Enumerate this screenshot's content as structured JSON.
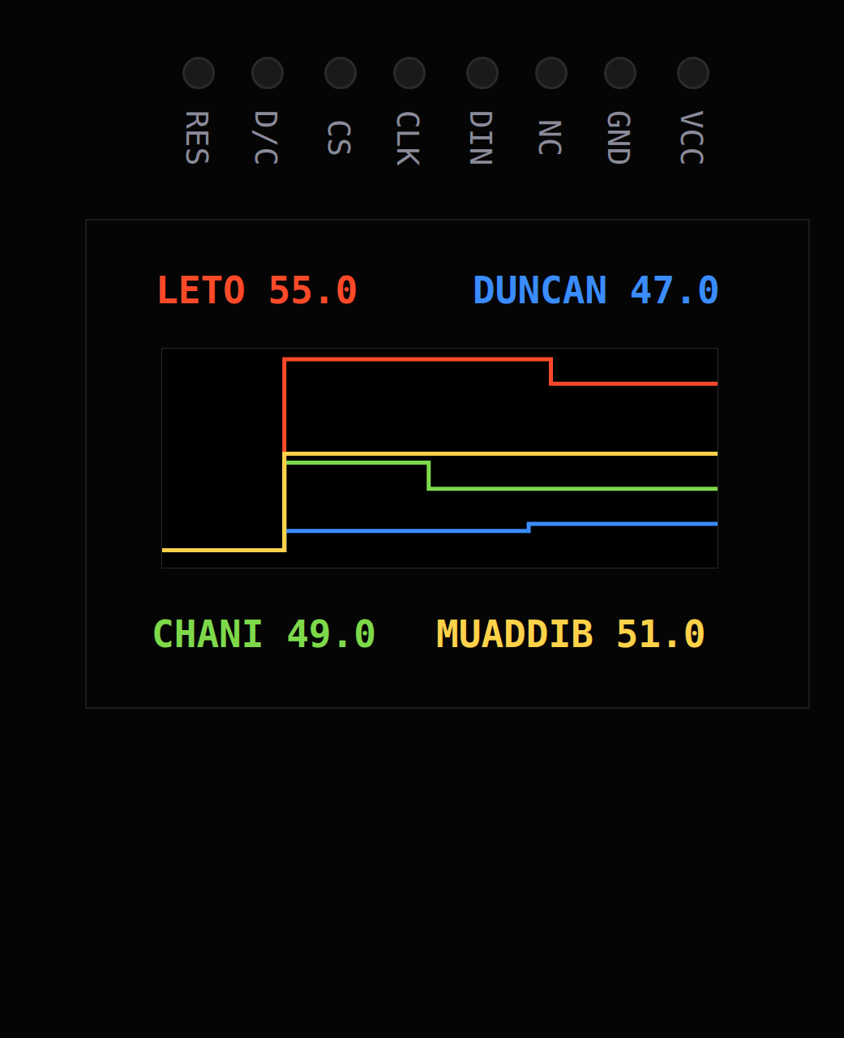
{
  "chart_data": {
    "type": "line",
    "line_style": "step",
    "x": [
      0,
      22,
      48,
      66,
      70,
      100
    ],
    "xlim": [
      0,
      100
    ],
    "ylim": [
      44.5,
      57
    ],
    "grid": false,
    "tick_labels": false,
    "series": [
      {
        "name": "LETO",
        "value_label": "55.0",
        "color": "#ff4a2a",
        "values": [
          45.5,
          56.4,
          56.4,
          56.4,
          55.0,
          55.0
        ]
      },
      {
        "name": "DUNCAN",
        "value_label": "47.0",
        "color": "#3a8cff",
        "values": [
          45.5,
          46.6,
          46.6,
          47.0,
          47.0,
          47.0
        ]
      },
      {
        "name": "CHANI",
        "value_label": "49.0",
        "color": "#7ed94a",
        "values": [
          45.5,
          50.5,
          49.0,
          49.0,
          49.0,
          49.0
        ]
      },
      {
        "name": "MUADDIB",
        "value_label": "51.0",
        "color": "#ffd24a",
        "values": [
          45.5,
          51.0,
          51.0,
          51.0,
          51.0,
          51.0
        ]
      }
    ]
  },
  "board": {
    "pins": [
      "RES",
      "D/C",
      "CS",
      "CLK",
      "DIN",
      "NC",
      "GND",
      "VCC"
    ]
  }
}
